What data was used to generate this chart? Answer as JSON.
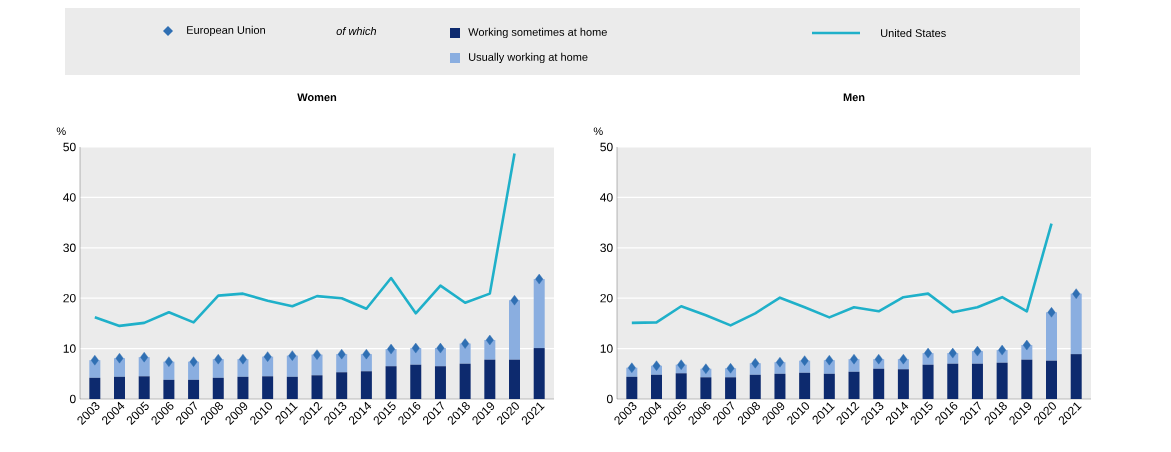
{
  "chart_data": [
    {
      "type": "bar",
      "stacked": true,
      "title": "Women",
      "ylabel": "%",
      "legend_title": "of which",
      "legend": "top",
      "categories": [
        "2003",
        "2004",
        "2005",
        "2006",
        "2007",
        "2008",
        "2009",
        "2010",
        "2011",
        "2012",
        "2013",
        "2014",
        "2015",
        "2016",
        "2017",
        "2018",
        "2019",
        "2020",
        "2021"
      ],
      "ylim": [
        0,
        50
      ],
      "yticks": [
        0,
        10,
        20,
        30,
        40,
        50
      ],
      "grid": "y",
      "series": [
        {
          "name": "European Union",
          "type": "scatter",
          "marker": "diamond",
          "color": "#2f6fb3",
          "values": [
            7.7,
            8.1,
            8.3,
            7.4,
            7.4,
            7.9,
            7.9,
            8.4,
            8.6,
            8.8,
            8.9,
            8.9,
            9.9,
            10.1,
            10.1,
            11.0,
            11.7,
            19.6,
            23.8
          ]
        },
        {
          "name": "Working sometimes at home",
          "type": "bar",
          "color": "#0d2a6e",
          "values": [
            4.2,
            4.4,
            4.5,
            3.8,
            3.8,
            4.2,
            4.4,
            4.5,
            4.4,
            4.7,
            5.3,
            5.5,
            6.5,
            6.8,
            6.5,
            7.0,
            7.8,
            7.8,
            10.1
          ]
        },
        {
          "name": "Usually working at home",
          "type": "bar",
          "color": "#8aaee0",
          "values": [
            3.5,
            3.7,
            3.8,
            3.6,
            3.6,
            3.7,
            3.5,
            3.9,
            4.2,
            4.1,
            3.6,
            3.4,
            3.4,
            3.3,
            3.6,
            4.0,
            3.9,
            11.8,
            13.7
          ]
        },
        {
          "name": "United States",
          "type": "line",
          "line_style": "solid",
          "color": "#1fb0c9",
          "values": [
            16.2,
            14.5,
            15.1,
            17.2,
            15.2,
            20.5,
            20.9,
            19.5,
            18.4,
            20.4,
            20.0,
            17.9,
            24.0,
            17.0,
            22.5,
            19.1,
            20.9,
            48.7,
            null
          ]
        }
      ]
    },
    {
      "type": "bar",
      "stacked": true,
      "title": "Men",
      "ylabel": "%",
      "categories": [
        "2003",
        "2004",
        "2005",
        "2006",
        "2007",
        "2008",
        "2009",
        "2010",
        "2011",
        "2012",
        "2013",
        "2014",
        "2015",
        "2016",
        "2017",
        "2018",
        "2019",
        "2020",
        "2021"
      ],
      "ylim": [
        0,
        50
      ],
      "yticks": [
        0,
        10,
        20,
        30,
        40,
        50
      ],
      "grid": "y",
      "series": [
        {
          "type": "scatter",
          "marker": "diamond",
          "color": "#2f6fb3",
          "values": [
            6.2,
            6.6,
            6.8,
            6.0,
            6.1,
            7.1,
            7.3,
            7.6,
            7.7,
            7.9,
            7.9,
            7.9,
            9.1,
            9.1,
            9.5,
            9.7,
            10.7,
            17.2,
            20.9
          ]
        },
        {
          "type": "bar",
          "color": "#0d2a6e",
          "values": [
            4.4,
            4.8,
            5.1,
            4.3,
            4.3,
            4.8,
            5.0,
            5.2,
            5.0,
            5.4,
            6.0,
            5.9,
            6.8,
            7.0,
            7.0,
            7.2,
            7.8,
            7.6,
            8.9
          ]
        },
        {
          "type": "bar",
          "color": "#8aaee0",
          "values": [
            1.8,
            1.8,
            1.7,
            1.7,
            1.8,
            2.3,
            2.3,
            2.4,
            2.7,
            2.5,
            1.9,
            2.0,
            2.3,
            2.1,
            2.5,
            2.5,
            2.9,
            9.6,
            12.0
          ]
        },
        {
          "type": "line",
          "line_style": "solid",
          "color": "#1fb0c9",
          "values": [
            15.1,
            15.2,
            18.4,
            16.6,
            14.6,
            17.0,
            20.1,
            18.2,
            16.2,
            18.2,
            17.4,
            20.2,
            20.9,
            17.2,
            18.2,
            20.2,
            17.4,
            34.8,
            null
          ]
        }
      ]
    }
  ]
}
